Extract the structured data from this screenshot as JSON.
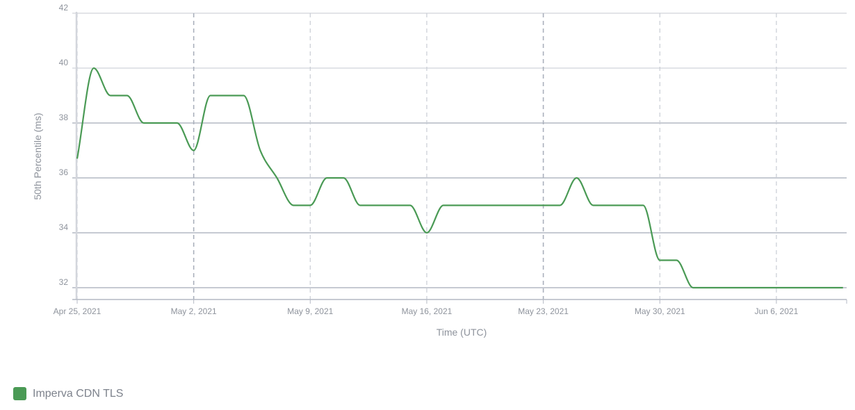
{
  "chart_data": {
    "type": "line",
    "title": "",
    "xlabel": "Time (UTC)",
    "ylabel": "50th Percentile (ms)",
    "ylim": [
      31.5,
      42
    ],
    "yticks": [
      32,
      34,
      36,
      38,
      40,
      42
    ],
    "xtick_labels": [
      "Apr 25, 2021",
      "May 2, 2021",
      "May 9, 2021",
      "May 16, 2021",
      "May 23, 2021",
      "May 30, 2021",
      "Jun 6, 2021"
    ],
    "grid": true,
    "legend_position": "bottom-left",
    "x": [
      "Apr 25",
      "Apr 26",
      "Apr 27",
      "Apr 28",
      "Apr 29",
      "Apr 30",
      "May 1",
      "May 2",
      "May 3",
      "May 4",
      "May 5",
      "May 6",
      "May 7",
      "May 8",
      "May 9",
      "May 10",
      "May 11",
      "May 12",
      "May 13",
      "May 14",
      "May 15",
      "May 16",
      "May 17",
      "May 18",
      "May 19",
      "May 20",
      "May 21",
      "May 22",
      "May 23",
      "May 24",
      "May 25",
      "May 26",
      "May 27",
      "May 28",
      "May 29",
      "May 30",
      "May 31",
      "Jun 1",
      "Jun 2",
      "Jun 3",
      "Jun 4",
      "Jun 5",
      "Jun 6",
      "Jun 7",
      "Jun 8",
      "Jun 9",
      "Jun 10"
    ],
    "series": [
      {
        "name": "Imperva CDN TLS",
        "color": "#4a9a55",
        "values": [
          36.7,
          40,
          39,
          39,
          38,
          38,
          38,
          37,
          39,
          39,
          39,
          37,
          36,
          35,
          35,
          36,
          36,
          35,
          35,
          35,
          35,
          34,
          35,
          35,
          35,
          35,
          35,
          35,
          35,
          35,
          36,
          35,
          35,
          35,
          35,
          33,
          33,
          32,
          32,
          32,
          32,
          32,
          32,
          32,
          32,
          32,
          32
        ]
      }
    ]
  },
  "legend": {
    "items": [
      {
        "label": "Imperva CDN TLS",
        "color": "#4a9a55"
      }
    ]
  }
}
